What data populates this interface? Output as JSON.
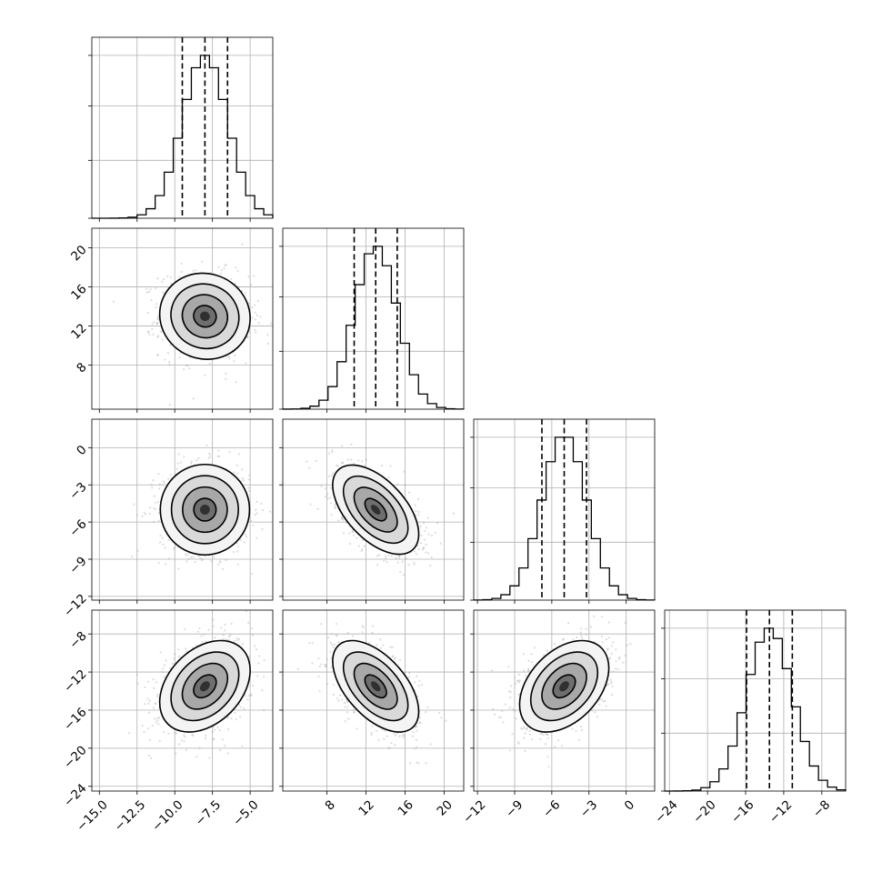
{
  "chart_data": {
    "type": "corner",
    "variables": [
      {
        "mean": -8.0,
        "sd": 1.5,
        "range": [
          -15.5,
          -3.5
        ],
        "ticks": [
          "-15.0",
          "-12.5",
          "-10.0",
          "-7.5",
          "-5.0"
        ],
        "tick_values": [
          -15.0,
          -12.5,
          -10.0,
          -7.5,
          -5.0
        ],
        "quantiles": [
          -9.5,
          -8.0,
          -6.5
        ]
      },
      {
        "mean": 13.0,
        "sd": 2.2,
        "range": [
          3.5,
          22.0
        ],
        "ticks": [
          "8",
          "12",
          "16",
          "20"
        ],
        "tick_values": [
          8,
          12,
          16,
          20
        ],
        "quantiles": [
          10.8,
          13.0,
          15.2
        ]
      },
      {
        "mean": -5.0,
        "sd": 1.8,
        "range": [
          -12.3,
          2.3
        ],
        "ticks": [
          "-12",
          "-9",
          "-6",
          "-3",
          "0"
        ],
        "tick_values": [
          -12,
          -9,
          -6,
          -3,
          0
        ],
        "quantiles": [
          -6.8,
          -5.0,
          -3.2
        ]
      },
      {
        "mean": -13.5,
        "sd": 2.4,
        "range": [
          -24.5,
          -5.5
        ],
        "ticks": [
          "-24",
          "-20",
          "-16",
          "-12",
          "-8"
        ],
        "tick_values": [
          -24,
          -20,
          -16,
          -12,
          -8
        ],
        "quantiles": [
          -15.9,
          -13.5,
          -11.1
        ]
      }
    ],
    "correlations": [
      {
        "i": 1,
        "j": 0,
        "rho": -0.05
      },
      {
        "i": 2,
        "j": 0,
        "rho": 0.0
      },
      {
        "i": 2,
        "j": 1,
        "rho": -0.55
      },
      {
        "i": 3,
        "j": 0,
        "rho": 0.35
      },
      {
        "i": 3,
        "j": 1,
        "rho": -0.55
      },
      {
        "i": 3,
        "j": 2,
        "rho": 0.4
      }
    ],
    "histogram_bins": 20,
    "contour_levels_sigma": [
      0.5,
      1.0,
      1.5,
      2.0
    ],
    "grid": true,
    "axis_titles": []
  }
}
